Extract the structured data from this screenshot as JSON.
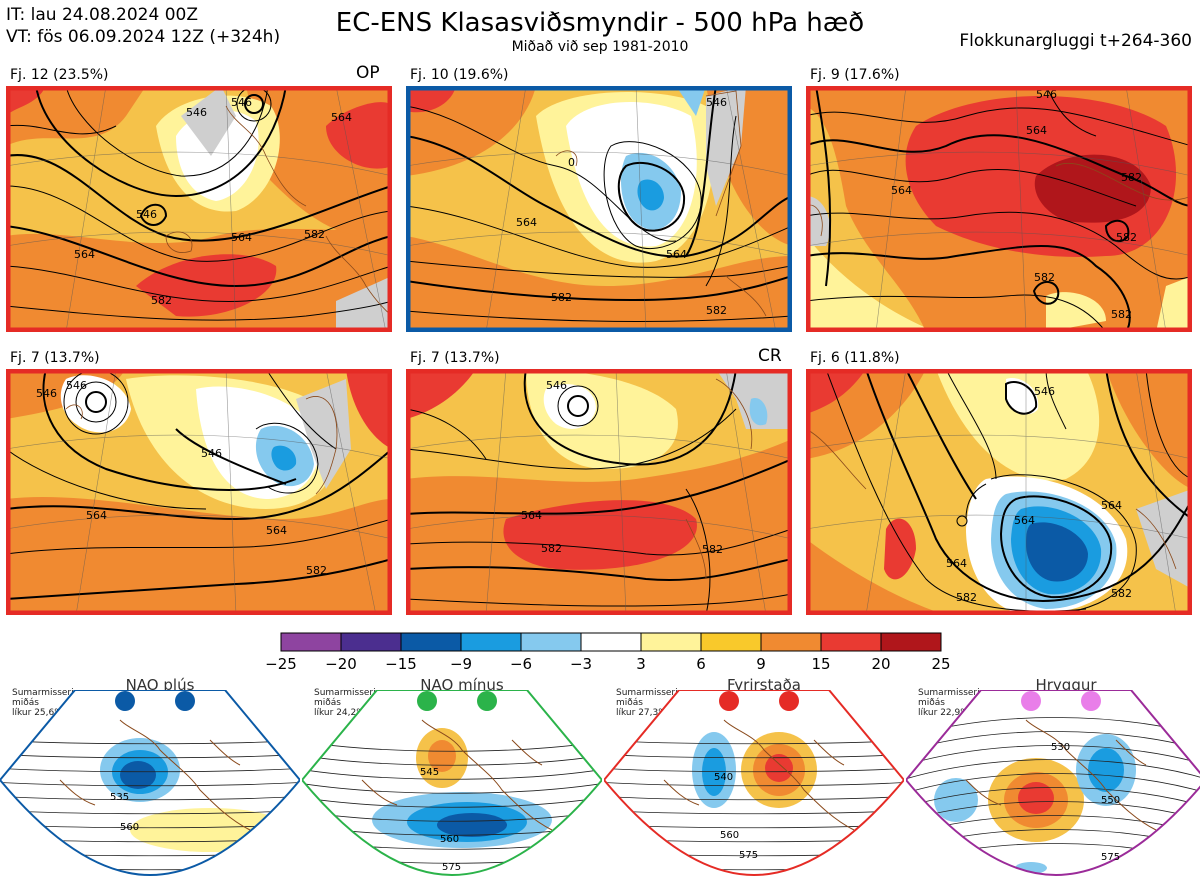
{
  "header": {
    "it": "IT: lau 24.08.2024 00Z",
    "vt": "VT: fös 06.09.2024 12Z  (+324h)",
    "title": "EC-ENS Klasasviðsmyndir - 500 hPa hæð",
    "subtitle": "Miðað við sep 1981-2010",
    "window": "Flokkunargluggi t+264-360"
  },
  "panels": [
    {
      "label": "Fj. 12 (23.5%)",
      "tag": "OP",
      "border": "#e52b25",
      "contours": [
        "546",
        "546",
        "546",
        "564",
        "564",
        "582",
        "582",
        "564"
      ]
    },
    {
      "label": "Fj. 10 (19.6%)",
      "tag": "",
      "border": "#0b5aa6",
      "contours": [
        "546",
        "564",
        "564",
        "582",
        "582",
        "0"
      ]
    },
    {
      "label": "Fj. 9 (17.6%)",
      "tag": "",
      "border": "#e52b25",
      "contours": [
        "546",
        "564",
        "564",
        "582",
        "582",
        "582",
        "582"
      ]
    },
    {
      "label": "Fj. 7 (13.7%)",
      "tag": "",
      "border": "#e52b25",
      "contours": [
        "546",
        "546",
        "546",
        "564",
        "564",
        "582"
      ]
    },
    {
      "label": "Fj. 7 (13.7%)",
      "tag": "CR",
      "border": "#e52b25",
      "contours": [
        "546",
        "564",
        "582",
        "582"
      ]
    },
    {
      "label": "Fj. 6 (11.8%)",
      "tag": "",
      "border": "#e52b25",
      "contours": [
        "546",
        "564",
        "564",
        "582",
        "564",
        "582"
      ]
    }
  ],
  "colorbar": {
    "labels": [
      "−25",
      "−20",
      "−15",
      "−9",
      "−6",
      "−3",
      "3",
      "6",
      "9",
      "15",
      "20",
      "25"
    ],
    "colors": [
      "#8e44a0",
      "#4b2e8f",
      "#0b5aa6",
      "#1a9ce0",
      "#85c9ee",
      "#ffffff",
      "#fff39a",
      "#f9c92b",
      "#f08a31",
      "#e93a32",
      "#b0161b"
    ]
  },
  "regimes": [
    {
      "title": "NAO plús",
      "season": "Sumarmisseri",
      "freq_label": "miðás",
      "prob": "líkur 25,6%",
      "color": "#0b5aa6",
      "labels": [
        "535",
        "560"
      ]
    },
    {
      "title": "NAO mínus",
      "season": "Sumarmisseri",
      "freq_label": "miðás",
      "prob": "líkur 24,2%",
      "color": "#2bb34a",
      "labels": [
        "545",
        "560",
        "575"
      ]
    },
    {
      "title": "Fyrirstaða",
      "season": "Sumarmisseri",
      "freq_label": "miðás",
      "prob": "líkur 27,3%",
      "color": "#e52b25",
      "labels": [
        "540",
        "560",
        "575"
      ]
    },
    {
      "title": "Hryggur",
      "season": "Sumarmisseri",
      "freq_label": "miðás",
      "prob": "líkur 22,9%",
      "color": "#9b2b99",
      "labels": [
        "530",
        "550",
        "575"
      ]
    }
  ]
}
